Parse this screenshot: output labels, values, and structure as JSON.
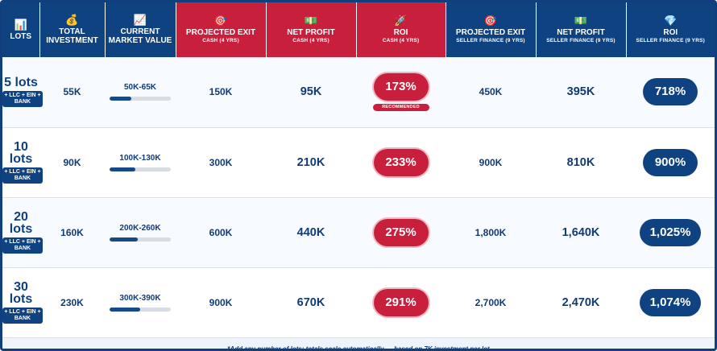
{
  "headers": [
    {
      "icon": "📊",
      "icon_name": "bar-chart-icon",
      "title": "LOTS",
      "sub": ""
    },
    {
      "icon": "💰",
      "icon_name": "money-bag-icon",
      "title": "TOTAL INVESTMENT",
      "sub": ""
    },
    {
      "icon": "📈",
      "icon_name": "trend-up-icon",
      "title": "CURRENT MARKET VALUE",
      "sub": ""
    },
    {
      "icon": "🎯",
      "icon_name": "target-icon",
      "title": "PROJECTED EXIT",
      "sub": "CASH (4 YRS)"
    },
    {
      "icon": "💵",
      "icon_name": "cash-icon",
      "title": "NET PROFIT",
      "sub": "CASH (4 YRS)"
    },
    {
      "icon": "🚀",
      "icon_name": "rocket-icon",
      "title": "ROI",
      "sub": "CASH (4 YRS)"
    },
    {
      "icon": "🎯",
      "icon_name": "target-icon",
      "title": "PROJECTED EXIT",
      "sub": "SELLER FINANCE (9 YRS)"
    },
    {
      "icon": "💵",
      "icon_name": "cash-icon",
      "title": "NET PROFIT",
      "sub": "SELLER FINANCE (9 YRS)"
    },
    {
      "icon": "💎",
      "icon_name": "diamond-icon",
      "title": "ROI",
      "sub": "SELLER FINANCE (9 YRS)"
    }
  ],
  "rows": [
    {
      "lots": "5 lots",
      "badge": "+ LLC + EIN + BANK",
      "investment": "55K",
      "market": "50K-65K",
      "market_fill": 0.35,
      "exit_cash": "150K",
      "profit_cash": "95K",
      "roi_cash": "173%",
      "recommended": "RECOMMENDED",
      "exit_seller": "450K",
      "profit_seller": "395K",
      "roi_seller": "718%"
    },
    {
      "lots": "10 lots",
      "badge": "+ LLC + EIN + BANK",
      "investment": "90K",
      "market": "100K-130K",
      "market_fill": 0.42,
      "exit_cash": "300K",
      "profit_cash": "210K",
      "roi_cash": "233%",
      "recommended": "",
      "exit_seller": "900K",
      "profit_seller": "810K",
      "roi_seller": "900%"
    },
    {
      "lots": "20 lots",
      "badge": "+ LLC + EIN + BANK",
      "investment": "160K",
      "market": "200K-260K",
      "market_fill": 0.46,
      "exit_cash": "600K",
      "profit_cash": "440K",
      "roi_cash": "275%",
      "recommended": "",
      "exit_seller": "1,800K",
      "profit_seller": "1,640K",
      "roi_seller": "1,025%"
    },
    {
      "lots": "30 lots",
      "badge": "+ LLC + EIN + BANK",
      "investment": "230K",
      "market": "300K-390K",
      "market_fill": 0.5,
      "exit_cash": "900K",
      "profit_cash": "670K",
      "roi_cash": "291%",
      "recommended": "",
      "exit_seller": "2,700K",
      "profit_seller": "2,470K",
      "roi_seller": "1,074%"
    }
  ],
  "footer": "*Add any number of lots; totals scale automatically — based on 7K investment per lot",
  "colors": {
    "navy": "#0f4280",
    "red": "#c8203c",
    "bar_track": "#d9dde3"
  }
}
